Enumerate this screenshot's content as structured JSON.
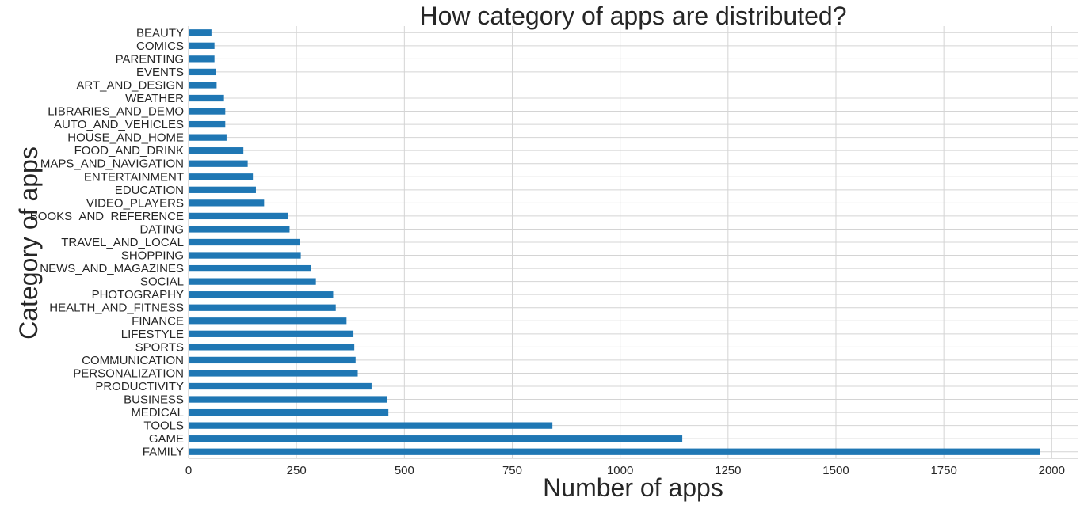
{
  "chart_data": {
    "type": "bar",
    "orientation": "horizontal",
    "title": "How category of apps are distributed?",
    "xlabel": "Number of apps",
    "ylabel": "Category of apps",
    "xlim": [
      0,
      2060
    ],
    "xticks": [
      0,
      250,
      500,
      750,
      1000,
      1250,
      1500,
      1750,
      2000
    ],
    "grid": true,
    "bar_color": "#1f77b4",
    "categories": [
      "FAMILY",
      "GAME",
      "TOOLS",
      "MEDICAL",
      "BUSINESS",
      "PRODUCTIVITY",
      "PERSONALIZATION",
      "COMMUNICATION",
      "SPORTS",
      "LIFESTYLE",
      "FINANCE",
      "HEALTH_AND_FITNESS",
      "PHOTOGRAPHY",
      "SOCIAL",
      "NEWS_AND_MAGAZINES",
      "SHOPPING",
      "TRAVEL_AND_LOCAL",
      "DATING",
      "BOOKS_AND_REFERENCE",
      "VIDEO_PLAYERS",
      "EDUCATION",
      "ENTERTAINMENT",
      "MAPS_AND_NAVIGATION",
      "FOOD_AND_DRINK",
      "HOUSE_AND_HOME",
      "AUTO_AND_VEHICLES",
      "LIBRARIES_AND_DEMO",
      "WEATHER",
      "ART_AND_DESIGN",
      "EVENTS",
      "PARENTING",
      "COMICS",
      "BEAUTY"
    ],
    "values": [
      1972,
      1144,
      843,
      463,
      460,
      424,
      392,
      387,
      384,
      382,
      366,
      341,
      335,
      295,
      283,
      260,
      258,
      234,
      231,
      175,
      156,
      149,
      137,
      127,
      88,
      85,
      85,
      82,
      65,
      64,
      60,
      60,
      53
    ]
  }
}
